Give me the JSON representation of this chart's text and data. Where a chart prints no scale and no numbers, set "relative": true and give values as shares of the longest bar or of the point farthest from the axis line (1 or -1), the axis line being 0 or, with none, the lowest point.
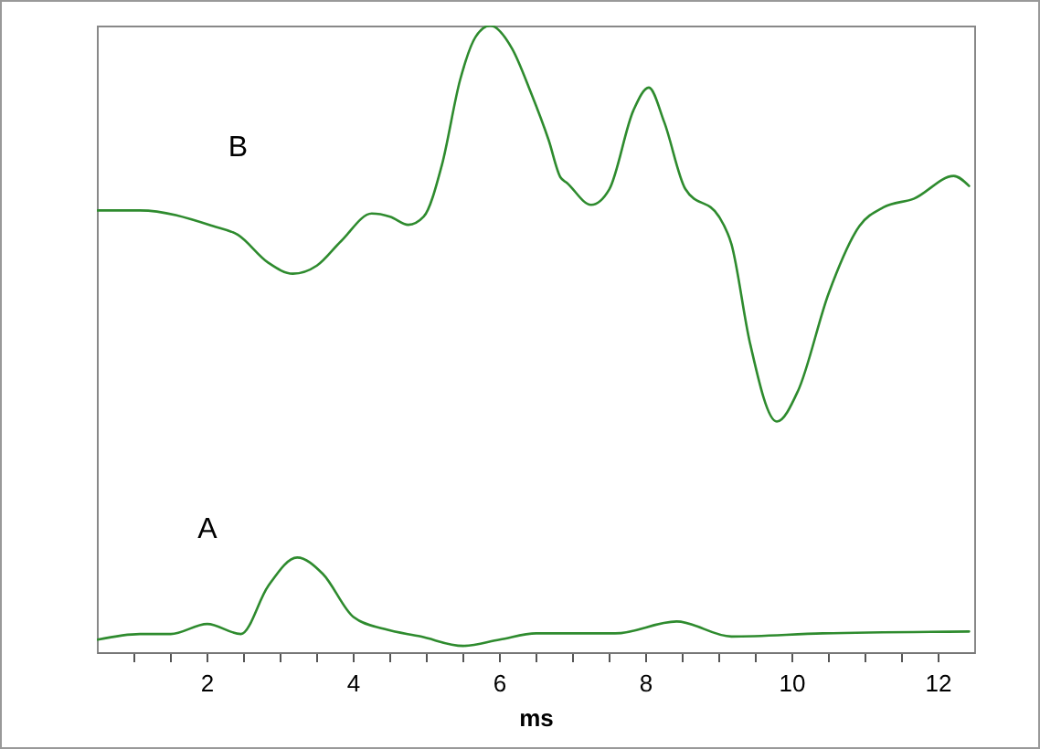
{
  "chart_data": {
    "type": "line",
    "relative": true,
    "xlabel": "ms",
    "xlim": [
      0.5,
      12.5
    ],
    "xticks": [
      {
        "value": 1,
        "label": null
      },
      {
        "value": 1.5,
        "label": null
      },
      2,
      {
        "value": 2.5,
        "label": null
      },
      {
        "value": 3,
        "label": null
      },
      {
        "value": 3.5,
        "label": null
      },
      4,
      {
        "value": 4.5,
        "label": null
      },
      {
        "value": 5,
        "label": null
      },
      {
        "value": 5.5,
        "label": null
      },
      6,
      {
        "value": 6.5,
        "label": null
      },
      {
        "value": 7,
        "label": null
      },
      {
        "value": 7.5,
        "label": null
      },
      8,
      {
        "value": 8.5,
        "label": null
      },
      {
        "value": 9,
        "label": null
      },
      {
        "value": 9.5,
        "label": null
      },
      10,
      {
        "value": 10.5,
        "label": null
      },
      {
        "value": 11,
        "label": null
      },
      {
        "value": 11.5,
        "label": null
      },
      12
    ],
    "grid": false,
    "marker": "none",
    "line_style": "solid",
    "series": [
      {
        "name": "B",
        "color": "#2e8b2e",
        "x": [
          0.51,
          1.09,
          2.09,
          2.43,
          2.84,
          3.18,
          3.51,
          3.84,
          4.26,
          4.51,
          4.76,
          4.97,
          5.22,
          5.47,
          5.68,
          5.88,
          6.18,
          6.43,
          6.68,
          6.84,
          6.93,
          7.26,
          7.51,
          7.84,
          8.05,
          8.26,
          8.55,
          9.01,
          9.18,
          9.43,
          9.8,
          10.09,
          10.51,
          10.93,
          11.26,
          11.68,
          12.22,
          12.43
        ],
        "values": [
          0.705,
          0.705,
          0.68,
          0.666,
          0.622,
          0.604,
          0.617,
          0.656,
          0.7,
          0.695,
          0.682,
          0.695,
          0.778,
          0.914,
          0.982,
          1,
          0.963,
          0.895,
          0.817,
          0.758,
          0.749,
          0.714,
          0.739,
          0.865,
          0.901,
          0.846,
          0.739,
          0.695,
          0.651,
          0.495,
          0.368,
          0.417,
          0.573,
          0.68,
          0.71,
          0.724,
          0.76,
          0.744
        ]
      },
      {
        "name": "A",
        "color": "#2e8b2e",
        "x": [
          0.51,
          1.09,
          1.51,
          2.01,
          2.47,
          2.84,
          3.24,
          3.59,
          4.01,
          4.43,
          4.93,
          5.51,
          6.01,
          6.51,
          7.59,
          8.43,
          9.18,
          10.43,
          12.43
        ],
        "values": [
          0.02,
          0.029,
          0.029,
          0.045,
          0.029,
          0.105,
          0.151,
          0.125,
          0.056,
          0.037,
          0.025,
          0.01,
          0.02,
          0.03,
          0.03,
          0.049,
          0.025,
          0.03,
          0.033
        ]
      }
    ]
  }
}
